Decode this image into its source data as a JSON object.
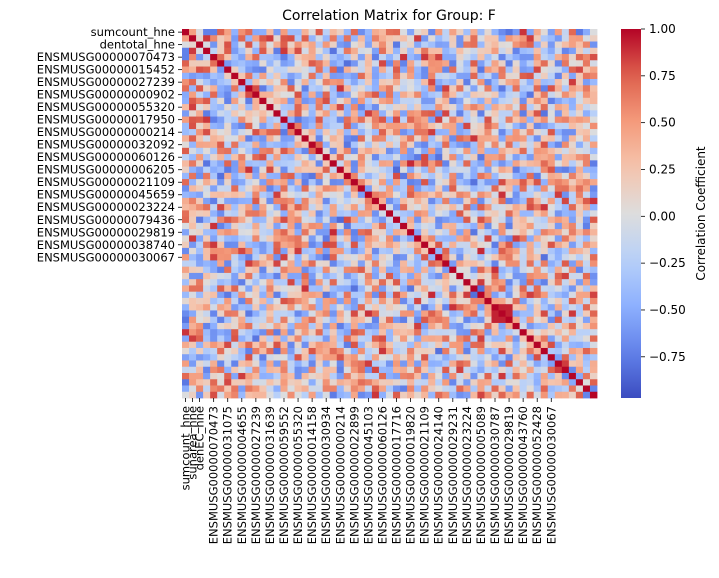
{
  "chart_data": {
    "type": "heatmap",
    "title": "Correlation Matrix for Group: F",
    "xlabel": "",
    "ylabel": "",
    "n": 59,
    "value_range": [
      -0.97,
      1.0
    ],
    "colormap": "coolwarm",
    "colorbar": {
      "label": "Correlation Coefficient",
      "ticks": [
        1.0,
        0.75,
        0.5,
        0.25,
        0.0,
        -0.25,
        -0.5,
        -0.75
      ],
      "tick_labels": [
        "1.00",
        "0.75",
        "0.50",
        "0.25",
        "0.00",
        "−0.25",
        "−0.50",
        "−0.75"
      ]
    },
    "y_tick_labels": [
      {
        "index": 0,
        "label": "sumcount_hne"
      },
      {
        "index": 2,
        "label": "dentotal_hne"
      },
      {
        "index": 4,
        "label": "ENSMUSG00000070473"
      },
      {
        "index": 6,
        "label": "ENSMUSG00000015452"
      },
      {
        "index": 8,
        "label": "ENSMUSG00000027239"
      },
      {
        "index": 10,
        "label": "ENSMUSG00000000902"
      },
      {
        "index": 12,
        "label": "ENSMUSG00000055320"
      },
      {
        "index": 14,
        "label": "ENSMUSG00000017950"
      },
      {
        "index": 16,
        "label": "ENSMUSG00000000214"
      },
      {
        "index": 18,
        "label": "ENSMUSG00000032092"
      },
      {
        "index": 20,
        "label": "ENSMUSG00000060126"
      },
      {
        "index": 22,
        "label": "ENSMUSG00000006205"
      },
      {
        "index": 24,
        "label": "ENSMUSG00000021109"
      },
      {
        "index": 26,
        "label": "ENSMUSG00000045659"
      },
      {
        "index": 28,
        "label": "ENSMUSG00000023224"
      },
      {
        "index": 30,
        "label": "ENSMUSG00000079436"
      },
      {
        "index": 32,
        "label": "ENSMUSG00000029819"
      },
      {
        "index": 34,
        "label": "ENSMUSG00000038740"
      },
      {
        "index": 36,
        "label": "ENSMUSG00000030067"
      }
    ],
    "x_tick_labels": [
      {
        "index": 0,
        "label": "sumcount_hne"
      },
      {
        "index": 1,
        "label": "sunarea_hne"
      },
      {
        "index": 2,
        "label": "denEC_hne"
      },
      {
        "index": 4,
        "label": "ENSMUSG00000070473"
      },
      {
        "index": 6,
        "label": "ENSMUSG00000031075"
      },
      {
        "index": 8,
        "label": "ENSMUSG00000004655"
      },
      {
        "index": 10,
        "label": "ENSMUSG00000027239"
      },
      {
        "index": 12,
        "label": "ENSMUSG00000031639"
      },
      {
        "index": 14,
        "label": "ENSMUSG00000059552"
      },
      {
        "index": 16,
        "label": "ENSMUSG00000055320"
      },
      {
        "index": 18,
        "label": "ENSMUSG00000014158"
      },
      {
        "index": 20,
        "label": "ENSMUSG00000030934"
      },
      {
        "index": 22,
        "label": "ENSMUSG00000000214"
      },
      {
        "index": 24,
        "label": "ENSMUSG00000022899"
      },
      {
        "index": 26,
        "label": "ENSMUSG00000045103"
      },
      {
        "index": 28,
        "label": "ENSMUSG00000060126"
      },
      {
        "index": 30,
        "label": "ENSMUSG00000017716"
      },
      {
        "index": 32,
        "label": "ENSMUSG00000019820"
      },
      {
        "index": 34,
        "label": "ENSMUSG00000021109"
      },
      {
        "index": 36,
        "label": "ENSMUSG00000024140"
      },
      {
        "index": 38,
        "label": "ENSMUSG00000029231"
      },
      {
        "index": 40,
        "label": "ENSMUSG00000023224"
      },
      {
        "index": 42,
        "label": "ENSMUSG00000005089"
      },
      {
        "index": 44,
        "label": "ENSMUSG00000030787"
      },
      {
        "index": 46,
        "label": "ENSMUSG00000029819"
      },
      {
        "index": 48,
        "label": "ENSMUSG00000043760"
      },
      {
        "index": 50,
        "label": "ENSMUSG00000052428"
      },
      {
        "index": 52,
        "label": "ENSMUSG00000030067"
      }
    ],
    "diagonal": 1.0,
    "strong_blocks": [
      {
        "rows": [
          44,
          46
        ],
        "cols": [
          44,
          46
        ],
        "value": 0.92
      },
      {
        "rows": [
          53,
          54
        ],
        "cols": [
          53,
          54
        ],
        "value": 0.85
      }
    ],
    "legend": "none",
    "grid": false
  }
}
